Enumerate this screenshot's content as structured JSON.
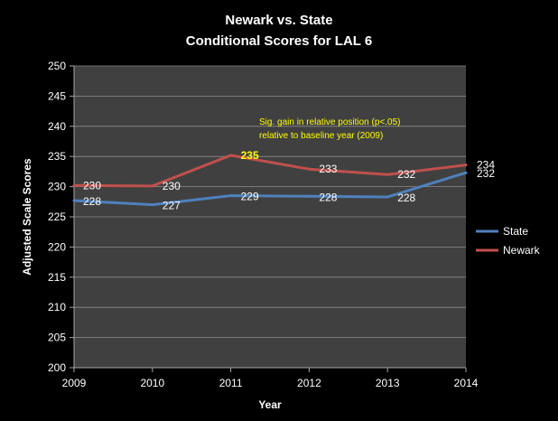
{
  "chart_data": {
    "type": "line",
    "title": "Newark vs. State",
    "subtitle": "Conditional Scores for LAL 6",
    "xlabel": "Year",
    "ylabel": "Adjusted Scale Scores",
    "x": [
      2009,
      2010,
      2011,
      2012,
      2013,
      2014
    ],
    "x_tick_labels": [
      "2009",
      "2010",
      "2011",
      "2012",
      "2013",
      "2014"
    ],
    "ylim": [
      200,
      250
    ],
    "y_tick_labels": [
      "200",
      "205",
      "210",
      "215",
      "220",
      "225",
      "230",
      "235",
      "240",
      "245",
      "250"
    ],
    "grid": true,
    "legend_position": "right",
    "series": [
      {
        "name": "State",
        "color": "#4f81bd",
        "values": [
          227.7,
          227.0,
          228.5,
          228.4,
          228.3,
          232.3
        ],
        "labels": [
          "228",
          "227",
          "229",
          "228",
          "228",
          "232"
        ]
      },
      {
        "name": "Newark",
        "color": "#c0504d",
        "values": [
          230.2,
          230.1,
          235.2,
          232.9,
          232.0,
          233.6
        ],
        "labels": [
          "230",
          "230",
          "235",
          "233",
          "232",
          "234"
        ]
      }
    ],
    "annotation": {
      "line1": "Sig. gain in relative position (p<.05)",
      "line2": "relative to baseline year (2009)",
      "color": "#ffff00"
    },
    "highlighted_label": {
      "series": "Newark",
      "year": 2011
    }
  }
}
